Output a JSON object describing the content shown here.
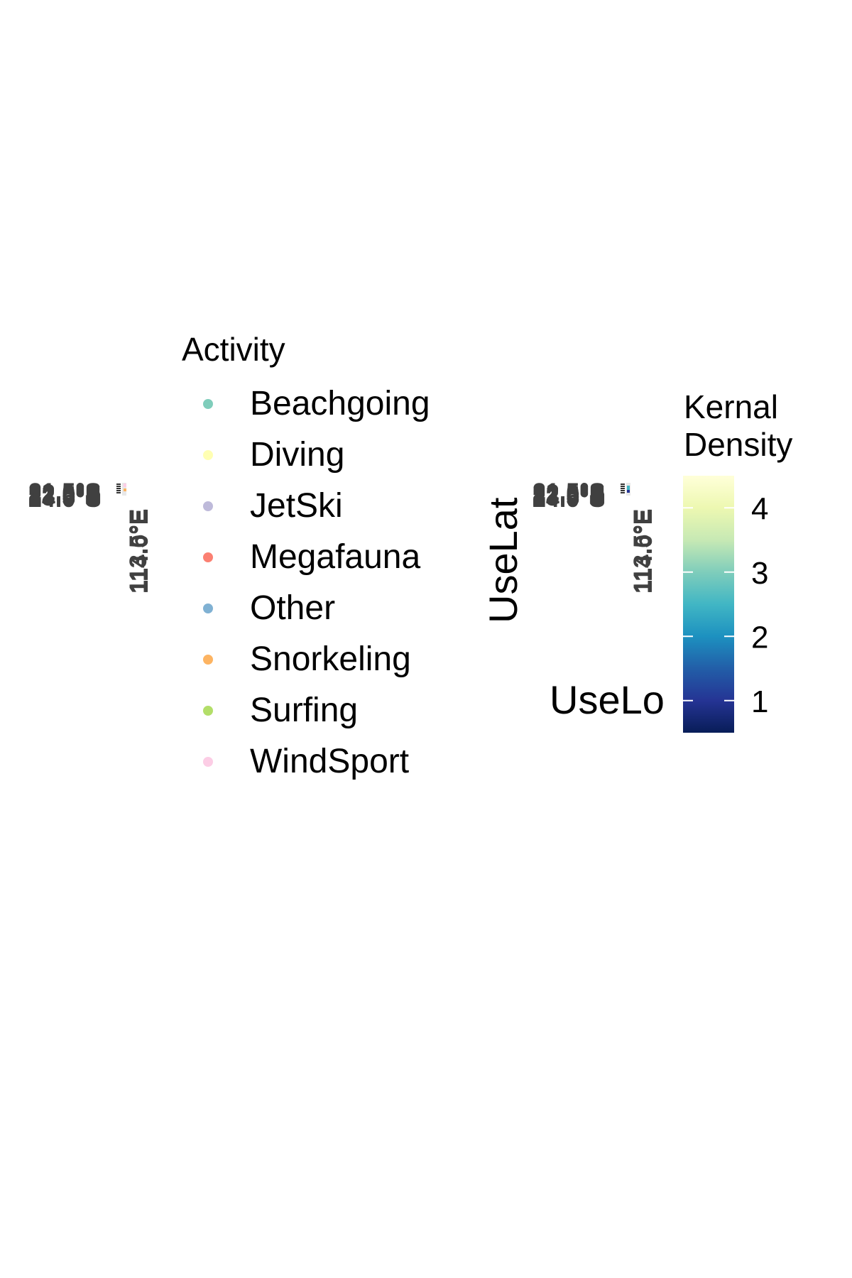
{
  "chart_data": [
    {
      "type": "scatter",
      "panel": "activity-map",
      "xlabel": "",
      "ylabel": "",
      "y_tick_labels": [
        "21.5°S",
        "22.0°S",
        "22.5°S",
        "23.0°S",
        "23.5°S",
        "24.0°S"
      ],
      "x_tick_labels": [
        "113.5°E",
        "114.0°E"
      ],
      "legend": {
        "title": "Activity",
        "placement": "right",
        "entries": [
          {
            "label": "Beachgoing",
            "color": "#7fcdbb"
          },
          {
            "label": "Diving",
            "color": "#ffffb3"
          },
          {
            "label": "JetSki",
            "color": "#bebada"
          },
          {
            "label": "Megafauna",
            "color": "#fb8072"
          },
          {
            "label": "Other",
            "color": "#80b1d3"
          },
          {
            "label": "Snorkeling",
            "color": "#fdb462"
          },
          {
            "label": "Surfing",
            "color": "#b3de69"
          },
          {
            "label": "WindSport",
            "color": "#fccde5"
          }
        ]
      }
    },
    {
      "type": "heatmap",
      "panel": "kernel-density-map",
      "xlabel": "UseLo",
      "ylabel": "UseLat",
      "y_tick_labels": [
        "21.5°S",
        "22.0°S",
        "22.5°S",
        "23.0°S",
        "23.5°S",
        "24.0°S"
      ],
      "x_tick_labels": [
        "113.5°E",
        "114.0°E"
      ],
      "colorbar": {
        "title_lines": [
          "Kernal",
          "Density"
        ],
        "ticks": [
          1,
          2,
          3,
          4
        ],
        "range": [
          0.5,
          4.5
        ],
        "colors": [
          "#081d58",
          "#253494",
          "#225ea8",
          "#1d91c0",
          "#41b6c4",
          "#7fcdbb",
          "#c7e9b4",
          "#edf8b1",
          "#ffffd9"
        ]
      }
    }
  ]
}
